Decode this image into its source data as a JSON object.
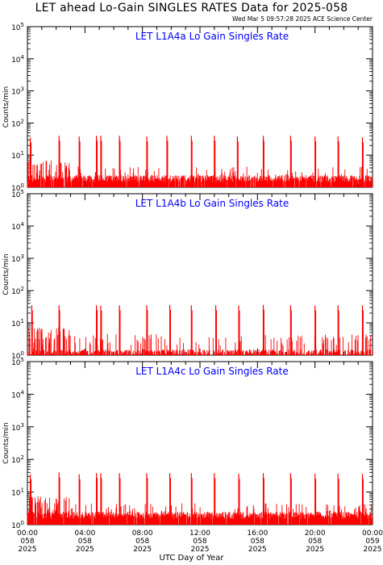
{
  "header": {
    "title": "LET ahead Lo-Gain SINGLES RATES Data for 2025-058",
    "timestamp": "Wed Mar  5 09:57:28 2025 ACE Science Center"
  },
  "colors": {
    "series": "#ff0000",
    "panel_title": "#0000ff",
    "axes": "#000000"
  },
  "chart_data": [
    {
      "type": "line",
      "title": "LET L1A4a Lo Gain Singles Rate",
      "ylabel": "Counts/min",
      "yscale": "log",
      "ylim": [
        1,
        100000
      ],
      "xlim": [
        0,
        24
      ],
      "y_tick_labels": [
        "10^0",
        "10^1",
        "10^2",
        "10^3",
        "10^4",
        "10^5"
      ],
      "baseline": 1.9,
      "spikes": [
        {
          "x": 0.2,
          "y": 35
        },
        {
          "x": 2.2,
          "y": 40
        },
        {
          "x": 3.6,
          "y": 38
        },
        {
          "x": 4.8,
          "y": 40
        },
        {
          "x": 5.1,
          "y": 40
        },
        {
          "x": 6.4,
          "y": 40
        },
        {
          "x": 8.3,
          "y": 38
        },
        {
          "x": 9.7,
          "y": 40
        },
        {
          "x": 11.4,
          "y": 40
        },
        {
          "x": 13.0,
          "y": 40
        },
        {
          "x": 14.6,
          "y": 38
        },
        {
          "x": 16.4,
          "y": 40
        },
        {
          "x": 18.3,
          "y": 40
        },
        {
          "x": 20.0,
          "y": 38
        },
        {
          "x": 21.6,
          "y": 38
        },
        {
          "x": 23.3,
          "y": 36
        }
      ]
    },
    {
      "type": "line",
      "title": "LET L1A4b Lo Gain Singles Rate",
      "ylabel": "Counts/min",
      "yscale": "log",
      "ylim": [
        1,
        100000
      ],
      "xlim": [
        0,
        24
      ],
      "y_tick_labels": [
        "10^0",
        "10^1",
        "10^2",
        "10^3",
        "10^4",
        "10^5"
      ],
      "baseline": 1.2,
      "spikes": [
        {
          "x": 0.3,
          "y": 35
        },
        {
          "x": 2.2,
          "y": 35
        },
        {
          "x": 4.8,
          "y": 35
        },
        {
          "x": 5.1,
          "y": 34
        },
        {
          "x": 6.4,
          "y": 35
        },
        {
          "x": 8.3,
          "y": 35
        },
        {
          "x": 9.9,
          "y": 36
        },
        {
          "x": 11.4,
          "y": 35
        },
        {
          "x": 13.1,
          "y": 35
        },
        {
          "x": 14.7,
          "y": 34
        },
        {
          "x": 16.4,
          "y": 36
        },
        {
          "x": 18.3,
          "y": 35
        },
        {
          "x": 20.0,
          "y": 34
        },
        {
          "x": 21.6,
          "y": 35
        },
        {
          "x": 23.3,
          "y": 35
        }
      ]
    },
    {
      "type": "line",
      "title": "LET L1A4c Lo Gain Singles Rate",
      "ylabel": "Counts/min",
      "yscale": "log",
      "ylim": [
        1,
        100000
      ],
      "xlim": [
        0,
        24
      ],
      "y_tick_labels": [
        "10^0",
        "10^1",
        "10^2",
        "10^3",
        "10^4",
        "10^5"
      ],
      "baseline": 2.0,
      "spikes": [
        {
          "x": 0.2,
          "y": 35
        },
        {
          "x": 2.2,
          "y": 40
        },
        {
          "x": 3.6,
          "y": 35
        },
        {
          "x": 4.8,
          "y": 38
        },
        {
          "x": 5.1,
          "y": 38
        },
        {
          "x": 6.4,
          "y": 38
        },
        {
          "x": 8.3,
          "y": 38
        },
        {
          "x": 9.9,
          "y": 38
        },
        {
          "x": 11.4,
          "y": 38
        },
        {
          "x": 13.0,
          "y": 38
        },
        {
          "x": 14.7,
          "y": 36
        },
        {
          "x": 16.4,
          "y": 38
        },
        {
          "x": 18.3,
          "y": 38
        },
        {
          "x": 20.0,
          "y": 36
        },
        {
          "x": 21.6,
          "y": 36
        },
        {
          "x": 23.3,
          "y": 36
        }
      ]
    }
  ],
  "x_axis": {
    "label": "UTC Day of Year",
    "ticks": [
      {
        "hour": 0,
        "time": "00:00",
        "doy": "058",
        "year": "2025"
      },
      {
        "hour": 4,
        "time": "04:00",
        "doy": "058",
        "year": "2025"
      },
      {
        "hour": 8,
        "time": "08:00",
        "doy": "058",
        "year": "2025"
      },
      {
        "hour": 12,
        "time": "12:00",
        "doy": "058",
        "year": "2025"
      },
      {
        "hour": 16,
        "time": "16:00",
        "doy": "058",
        "year": "2025"
      },
      {
        "hour": 20,
        "time": "20:00",
        "doy": "058",
        "year": "2025"
      },
      {
        "hour": 24,
        "time": "00:00",
        "doy": "059",
        "year": "2025"
      }
    ]
  }
}
